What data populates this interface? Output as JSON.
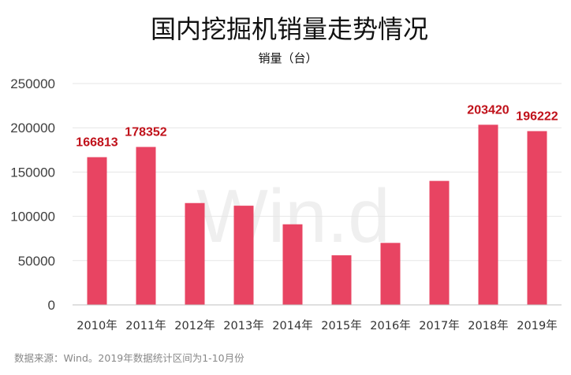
{
  "chart_data": {
    "type": "bar",
    "title": "国内挖掘机销量走势情况",
    "ylabel": "销量（台）",
    "xlabel": "",
    "categories": [
      "2010年",
      "2011年",
      "2012年",
      "2013年",
      "2014年",
      "2015年",
      "2016年",
      "2017年",
      "2018年",
      "2019年"
    ],
    "values": [
      166813,
      178352,
      115000,
      112000,
      91000,
      56000,
      70000,
      140000,
      203420,
      196222
    ],
    "data_labels": [
      "166813",
      "178352",
      "",
      "",
      "",
      "",
      "",
      "",
      "203420",
      "196222"
    ],
    "ylim": [
      0,
      250000
    ],
    "yticks": [
      "0",
      "50000",
      "100000",
      "150000",
      "200000",
      "250000"
    ],
    "grid": true,
    "legend": "none",
    "bar_color": "#e84462",
    "label_color": "#c0111a"
  },
  "watermark": "Win.d",
  "footer": "数据来源：Wind。2019年数据统计区间为1-10月份"
}
